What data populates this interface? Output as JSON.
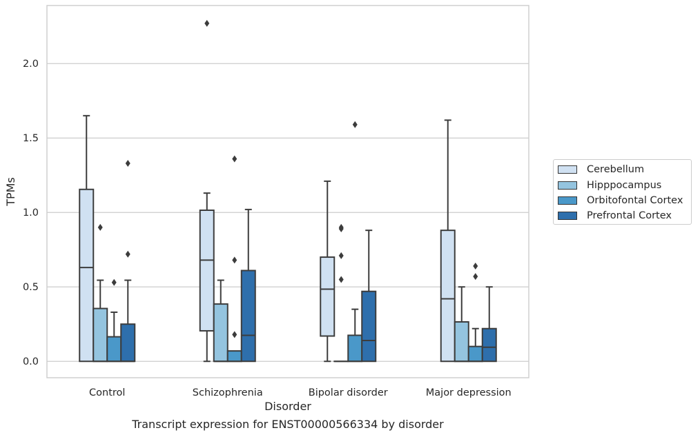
{
  "chart_data": {
    "type": "box",
    "caption": "Transcript expression for ENST00000566334 by disorder",
    "xlabel": "Disorder",
    "ylabel": "TPMs",
    "ylim": [
      -0.11,
      2.39
    ],
    "yticks": [
      "0.0",
      "0.5",
      "1.0",
      "1.5",
      "2.0"
    ],
    "ytick_values": [
      0,
      0.5,
      1.0,
      1.5,
      2.0
    ],
    "grid": true,
    "legend_position": "right",
    "categories": [
      "Control",
      "Schizophrenia",
      "Bipolar disorder",
      "Major depression"
    ],
    "series": [
      {
        "name": "Cerebellum",
        "color": "#d0e1f2",
        "boxes": [
          {
            "q1": 0.0,
            "median": 0.63,
            "q3": 1.155,
            "whislo": 0.0,
            "whishi": 1.65,
            "fliers": []
          },
          {
            "q1": 0.205,
            "median": 0.68,
            "q3": 1.015,
            "whislo": 0.0,
            "whishi": 1.13,
            "fliers": [
              2.27
            ]
          },
          {
            "q1": 0.17,
            "median": 0.485,
            "q3": 0.7,
            "whislo": 0.0,
            "whishi": 1.21,
            "fliers": []
          },
          {
            "q1": 0.0,
            "median": 0.42,
            "q3": 0.88,
            "whislo": 0.0,
            "whishi": 1.62,
            "fliers": []
          }
        ]
      },
      {
        "name": "Hipppocampus",
        "color": "#94c4df",
        "boxes": [
          {
            "q1": 0.0,
            "median": 0.0,
            "q3": 0.355,
            "whislo": 0.0,
            "whishi": 0.545,
            "fliers": [
              0.9
            ]
          },
          {
            "q1": 0.0,
            "median": 0.0,
            "q3": 0.385,
            "whislo": 0.0,
            "whishi": 0.545,
            "fliers": []
          },
          {
            "q1": 0.0,
            "median": 0.0,
            "q3": 0.0,
            "whislo": 0.0,
            "whishi": 0.0,
            "fliers": [
              0.89,
              0.9,
              0.55,
              0.71
            ]
          },
          {
            "q1": 0.0,
            "median": 0.0,
            "q3": 0.265,
            "whislo": 0.0,
            "whishi": 0.5,
            "fliers": []
          }
        ]
      },
      {
        "name": "Orbitofontal Cortex",
        "color": "#4a98c9",
        "boxes": [
          {
            "q1": 0.0,
            "median": 0.0,
            "q3": 0.165,
            "whislo": 0.0,
            "whishi": 0.33,
            "fliers": [
              0.53
            ]
          },
          {
            "q1": 0.0,
            "median": 0.0,
            "q3": 0.07,
            "whislo": 0.0,
            "whishi": 0.07,
            "fliers": [
              0.68,
              1.36,
              0.18
            ]
          },
          {
            "q1": 0.0,
            "median": 0.0,
            "q3": 0.175,
            "whislo": 0.0,
            "whishi": 0.35,
            "fliers": [
              1.59
            ]
          },
          {
            "q1": 0.0,
            "median": 0.0,
            "q3": 0.1,
            "whislo": 0.0,
            "whishi": 0.22,
            "fliers": [
              0.64,
              0.57
            ]
          }
        ]
      },
      {
        "name": "Prefrontal Cortex",
        "color": "#2e6fac",
        "boxes": [
          {
            "q1": 0.0,
            "median": 0.0,
            "q3": 0.25,
            "whislo": 0.0,
            "whishi": 0.545,
            "fliers": [
              0.72,
              1.33
            ]
          },
          {
            "q1": 0.0,
            "median": 0.175,
            "q3": 0.61,
            "whislo": 0.0,
            "whishi": 1.02,
            "fliers": []
          },
          {
            "q1": 0.0,
            "median": 0.14,
            "q3": 0.47,
            "whislo": 0.0,
            "whishi": 0.88,
            "fliers": []
          },
          {
            "q1": 0.0,
            "median": 0.095,
            "q3": 0.22,
            "whislo": 0.0,
            "whishi": 0.5,
            "fliers": []
          }
        ]
      }
    ]
  }
}
